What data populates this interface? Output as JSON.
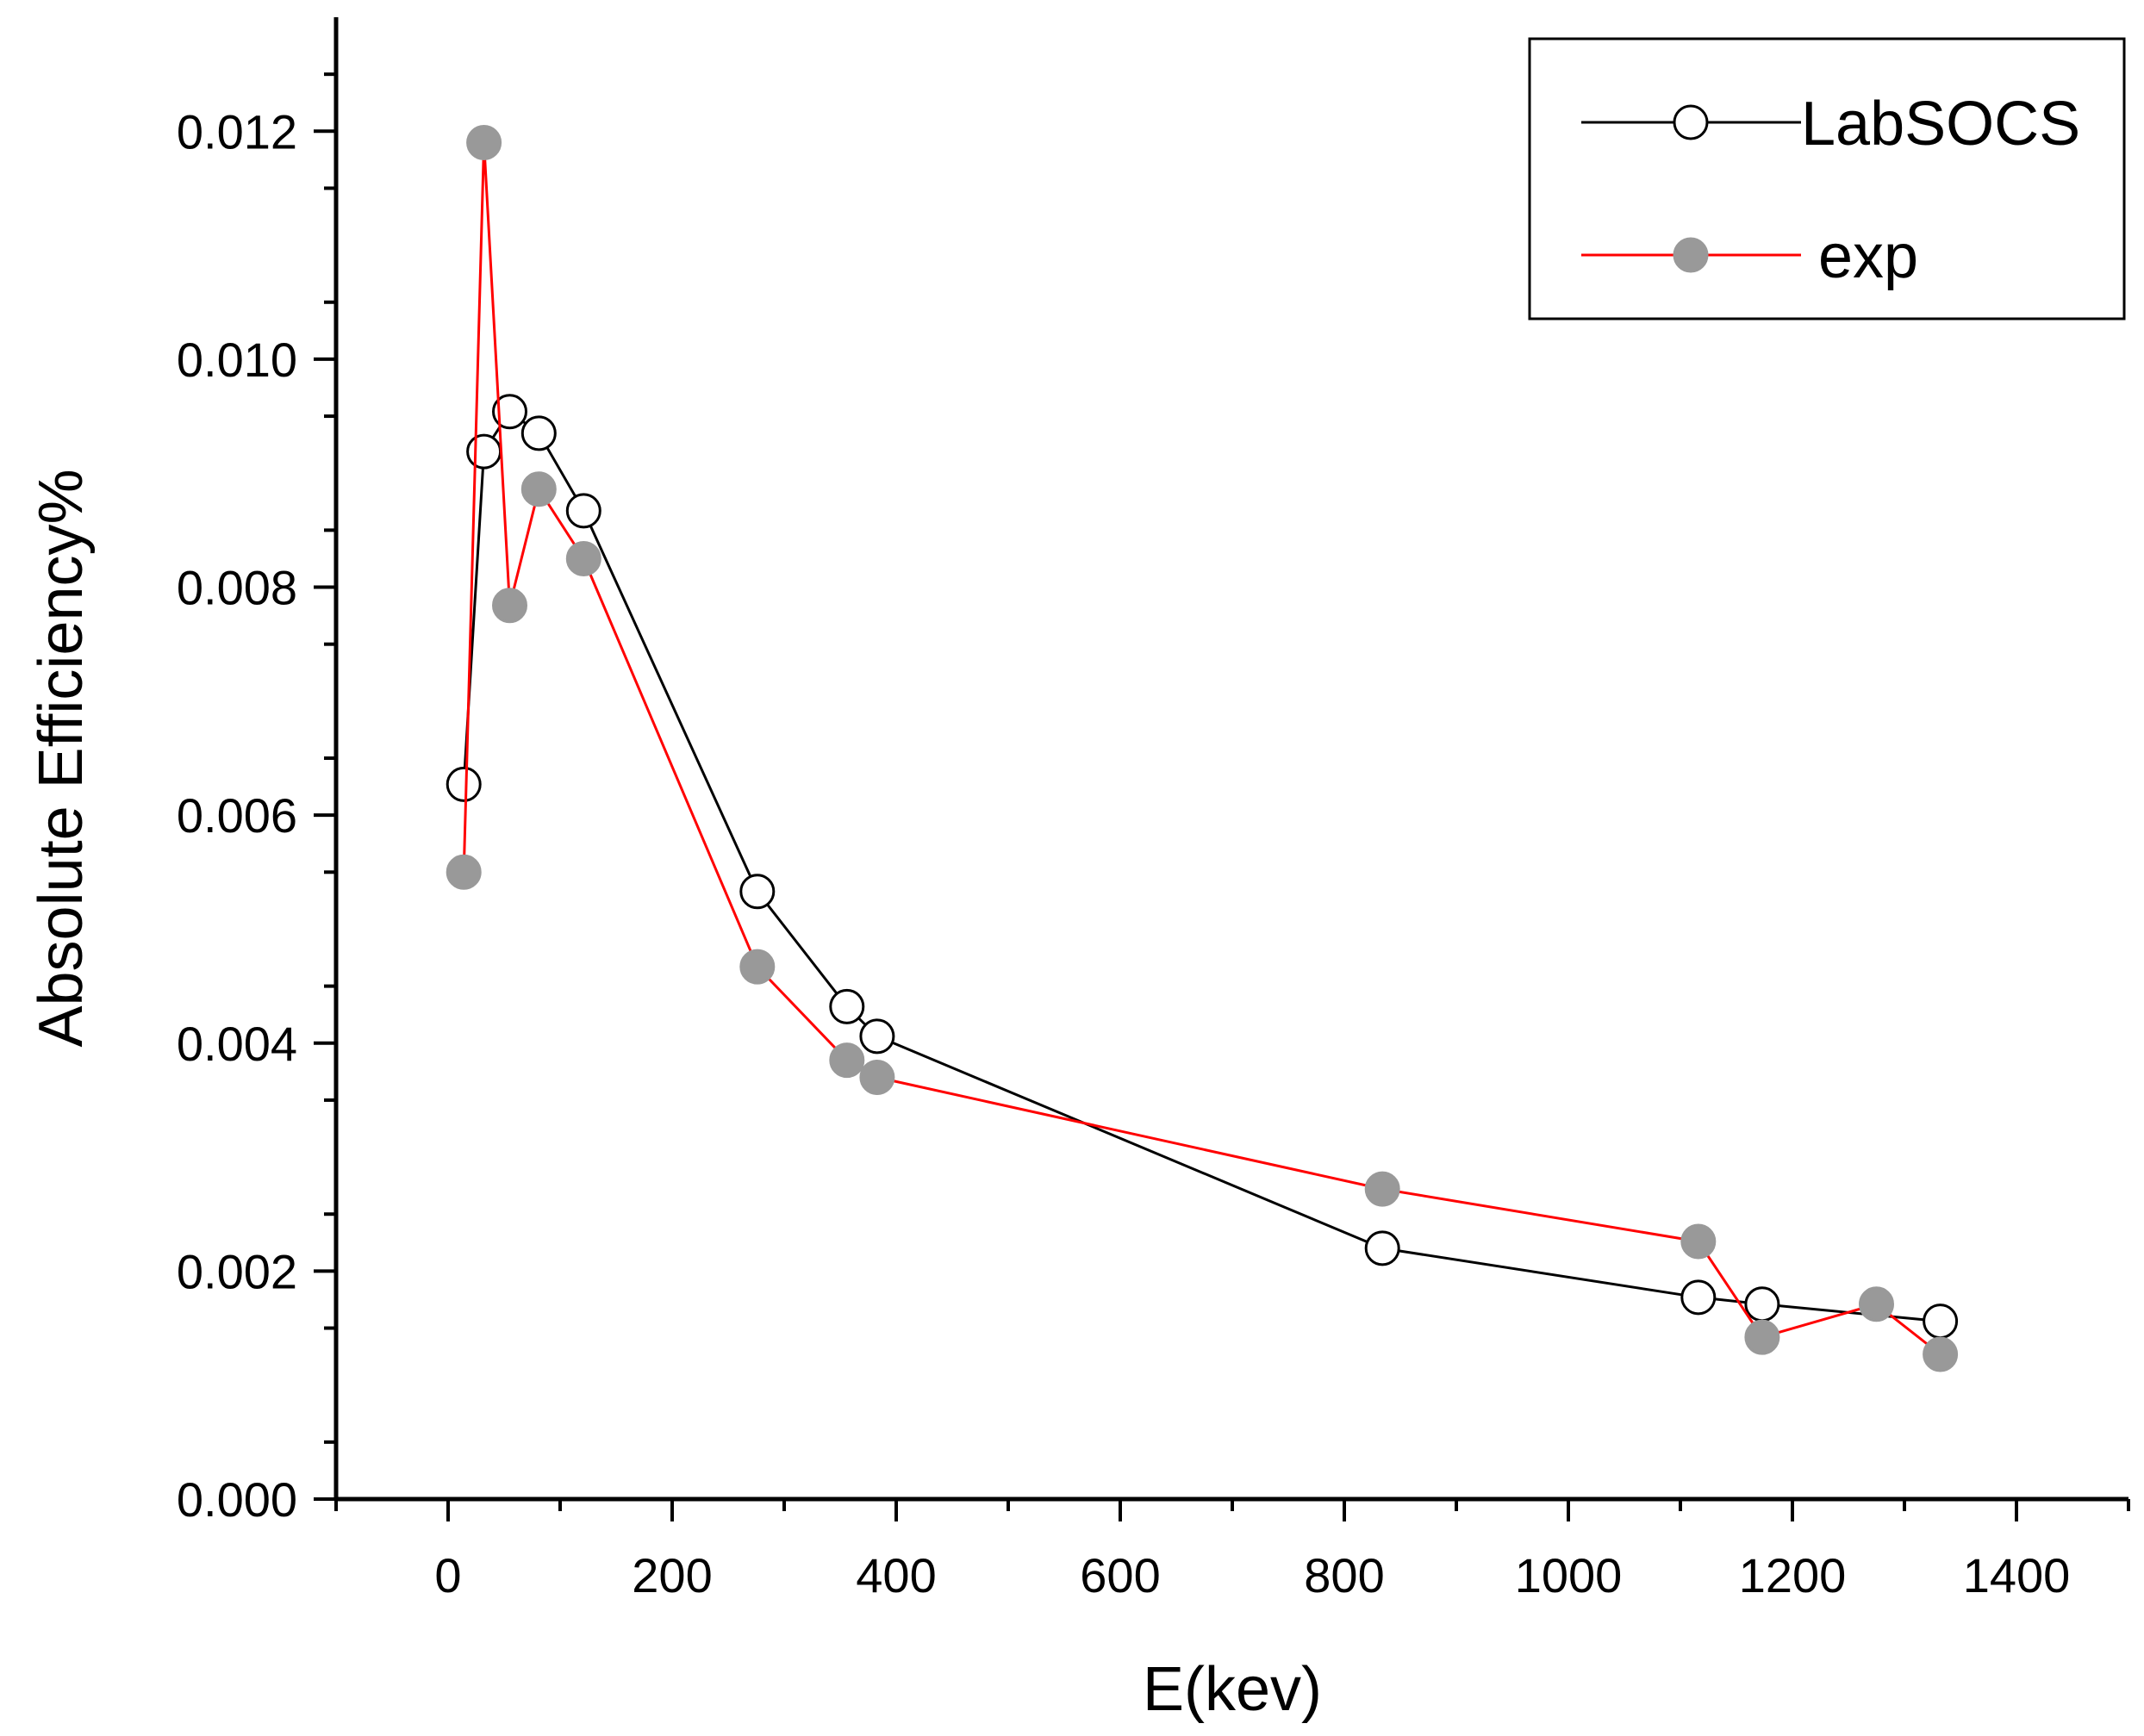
{
  "chart_data": {
    "type": "line",
    "title": "",
    "xlabel": "E(kev)",
    "ylabel": "Absolute Efficiency%",
    "xlim": [
      -100,
      1500
    ],
    "ylim": [
      0.0,
      0.013
    ],
    "x_ticks": [
      0,
      200,
      400,
      600,
      800,
      1000,
      1200,
      1400
    ],
    "x_tick_labels": [
      "0",
      "200",
      "400",
      "600",
      "800",
      "1000",
      "1200",
      "1400"
    ],
    "y_ticks": [
      0.0,
      0.002,
      0.004,
      0.006,
      0.008,
      0.01,
      0.012
    ],
    "y_tick_labels": [
      "0.000",
      "0.002",
      "0.004",
      "0.006",
      "0.008",
      "0.010",
      "0.012"
    ],
    "grid": false,
    "legend_position": "top-right",
    "series": [
      {
        "name": "LabSOCS",
        "line_color": "#000000",
        "marker": "open-circle",
        "marker_fill": "#ffffff",
        "marker_stroke": "#000000",
        "x": [
          14,
          32,
          55,
          81,
          121,
          276,
          356,
          383,
          834,
          1116,
          1173,
          1332
        ],
        "y": [
          0.00627,
          0.00919,
          0.00954,
          0.00935,
          0.00867,
          0.00533,
          0.00432,
          0.00406,
          0.0022,
          0.00177,
          0.00171,
          0.00156
        ]
      },
      {
        "name": "exp",
        "line_color": "#ff0000",
        "marker": "filled-circle",
        "marker_fill": "#999999",
        "marker_stroke": "#999999",
        "x": [
          14,
          32,
          55,
          81,
          121,
          276,
          356,
          383,
          834,
          1116,
          1173,
          1275,
          1332
        ],
        "y": [
          0.0055,
          0.0119,
          0.00784,
          0.00886,
          0.00825,
          0.00467,
          0.00385,
          0.0037,
          0.00272,
          0.00226,
          0.00142,
          0.00171,
          0.00127
        ]
      }
    ]
  }
}
